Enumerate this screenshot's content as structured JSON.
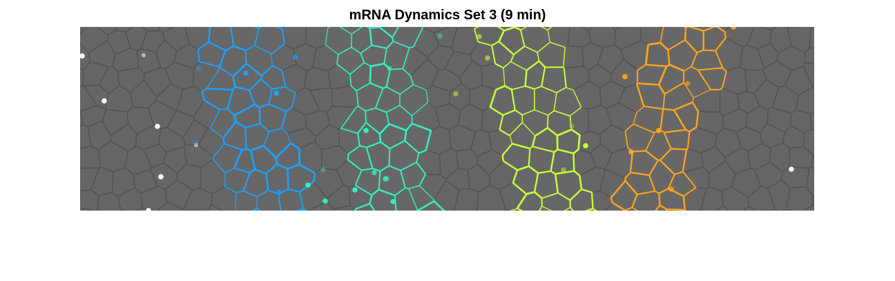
{
  "figure": {
    "title": "mRNA Dynamics Set 3 (9 min)"
  },
  "colors": {
    "background": "#656565",
    "cell_edge": "#555555",
    "stripe_1": "#1aa3ff",
    "stripe_2": "#33f0c0",
    "stripe_3": "#c8ff3c",
    "stripe_4": "#ffa51a",
    "dot_background": "#ffffff"
  },
  "stripes": [
    {
      "color_key": "stripe_1",
      "label": ""
    },
    {
      "color_key": "stripe_2",
      "label": ""
    },
    {
      "color_key": "stripe_3",
      "label": ""
    },
    {
      "color_key": "stripe_4",
      "label": ""
    }
  ]
}
